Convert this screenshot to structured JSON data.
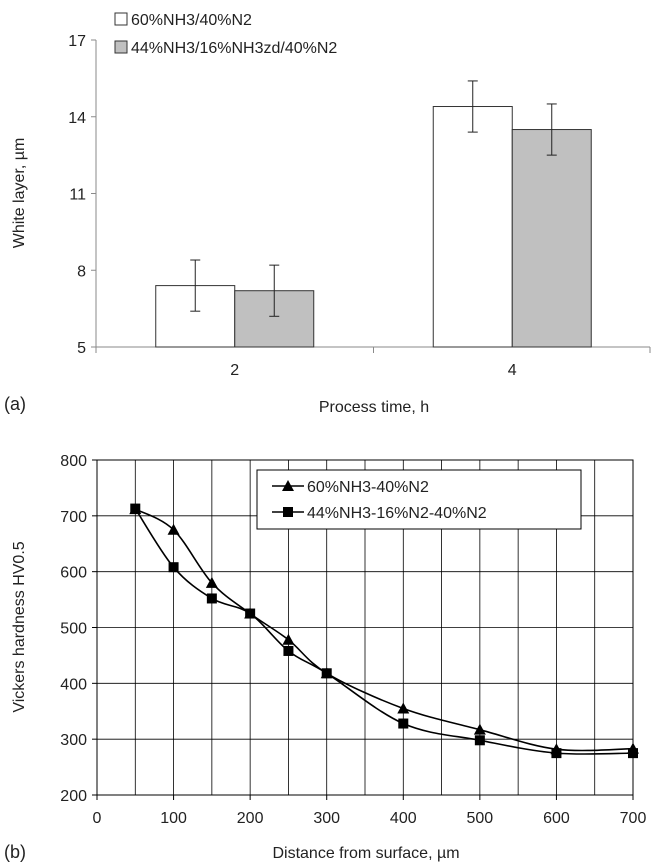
{
  "chart_data": [
    {
      "type": "bar",
      "panel_label": "(a)",
      "categories": [
        "2",
        "4"
      ],
      "series": [
        {
          "name": "60%NH3/40%N2",
          "values": [
            7.4,
            14.4
          ],
          "errors": [
            1.0,
            1.0
          ],
          "color": "#ffffff"
        },
        {
          "name": "44%NH3/16%NH3zd/40%N2",
          "values": [
            7.2,
            13.5
          ],
          "errors": [
            1.0,
            1.0
          ],
          "color": "#c0c0c0"
        }
      ],
      "xlabel": "Process time, h",
      "ylabel": "White layer, µm",
      "ylim": [
        5,
        17
      ],
      "yticks": [
        "5",
        "8",
        "11",
        "14",
        "17"
      ],
      "grid": false,
      "legend": "top-left"
    },
    {
      "type": "line",
      "panel_label": "(b)",
      "x": [
        50,
        100,
        150,
        200,
        250,
        300,
        400,
        500,
        600,
        700
      ],
      "series": [
        {
          "name": "60%NH3-40%N2",
          "marker": "triangle",
          "values": [
            712,
            675,
            580,
            525,
            478,
            418,
            355,
            317,
            282,
            283
          ]
        },
        {
          "name": "44%NH3-16%N2-40%N2",
          "marker": "square",
          "values": [
            713,
            608,
            552,
            525,
            458,
            418,
            328,
            298,
            275,
            275
          ]
        }
      ],
      "xlabel": "Distance from surface, µm",
      "ylabel": "Vickers hardness HV0.5",
      "xlim": [
        0,
        700
      ],
      "ylim": [
        200,
        800
      ],
      "xticks": [
        "0",
        "100",
        "200",
        "300",
        "400",
        "500",
        "600",
        "700"
      ],
      "yticks": [
        "200",
        "300",
        "400",
        "500",
        "600",
        "700",
        "800"
      ],
      "grid": true,
      "legend": "top-right",
      "color": "#000000"
    }
  ]
}
